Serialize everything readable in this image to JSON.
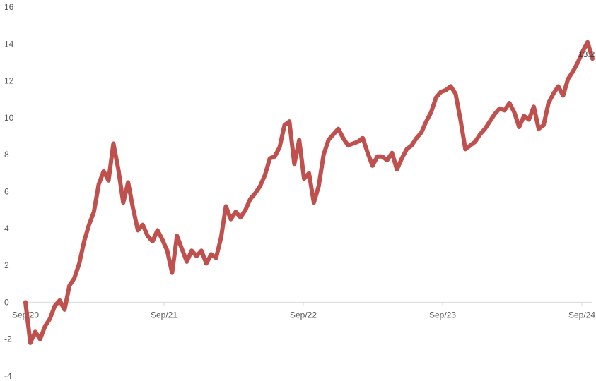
{
  "chart_data": {
    "type": "line",
    "title": "",
    "xlabel": "",
    "ylabel": "",
    "ylim": [
      -4,
      16
    ],
    "y_ticks": [
      -4,
      -2,
      0,
      2,
      4,
      6,
      8,
      10,
      12,
      14,
      16
    ],
    "x_ticks": [
      "Sep/20",
      "Sep/21",
      "Sep/22",
      "Sep/23",
      "Sep/24"
    ],
    "xlim": [
      "2020-09",
      "2024-09"
    ],
    "grid": false,
    "legend": "none",
    "last_label": "13.2",
    "color": "#c0504d",
    "series": [
      {
        "values": [
          0.0,
          -2.2,
          -1.6,
          -2.0,
          -1.3,
          -0.9,
          -0.2,
          0.1,
          -0.4,
          0.9,
          1.3,
          2.1,
          3.3,
          4.2,
          4.9,
          6.4,
          7.1,
          6.6,
          8.6,
          7.2,
          5.4,
          6.5,
          5.1,
          3.9,
          4.2,
          3.6,
          3.3,
          3.9,
          3.4,
          2.8,
          1.6,
          3.6,
          2.9,
          2.2,
          2.8,
          2.5,
          2.8,
          2.1,
          2.6,
          2.4,
          3.5,
          5.2,
          4.5,
          4.9,
          4.6,
          5.0,
          5.6,
          5.9,
          6.3,
          6.9,
          7.8,
          7.9,
          8.4,
          9.6,
          9.8,
          7.5,
          8.8,
          6.7,
          7.0,
          5.4,
          6.3,
          8.0,
          8.8,
          9.1,
          9.4,
          8.9,
          8.5,
          8.6,
          8.7,
          8.9,
          8.1,
          7.4,
          7.9,
          7.9,
          7.7,
          8.1,
          7.2,
          7.8,
          8.3,
          8.5,
          8.9,
          9.2,
          9.8,
          10.3,
          11.1,
          11.4,
          11.5,
          11.7,
          11.3,
          9.9,
          8.3,
          8.5,
          8.7,
          9.1,
          9.4,
          9.8,
          10.2,
          10.5,
          10.4,
          10.8,
          10.3,
          9.5,
          10.1,
          9.9,
          10.6,
          9.4,
          9.6,
          10.8,
          11.3,
          11.7,
          11.2,
          12.1,
          12.5,
          13.0,
          13.6,
          14.1,
          13.2
        ]
      }
    ]
  }
}
